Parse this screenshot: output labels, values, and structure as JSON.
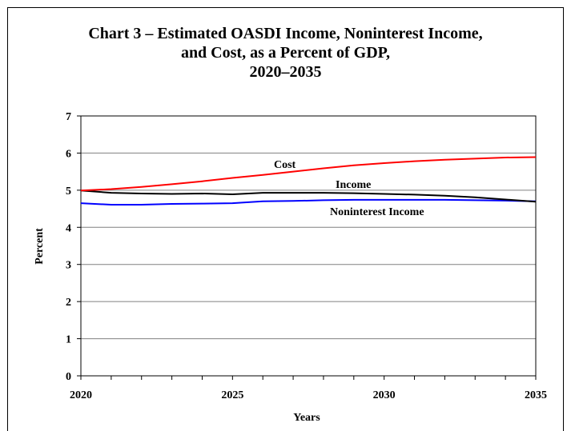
{
  "chart_data": {
    "type": "line",
    "title": [
      "Chart 3 – Estimated OASDI Income, Noninterest Income,",
      "and Cost, as a Percent of GDP,",
      "2020–2035"
    ],
    "xlabel": "Years",
    "ylabel": "Percent",
    "xlim": [
      2020,
      2035
    ],
    "ylim": [
      0,
      7
    ],
    "x_ticks": [
      "2020",
      "2025",
      "2030",
      "2035"
    ],
    "y_ticks": [
      "0",
      "1",
      "2",
      "3",
      "4",
      "5",
      "6",
      "7"
    ],
    "grid": "horizontal",
    "x": [
      2020,
      2021,
      2022,
      2023,
      2024,
      2025,
      2026,
      2027,
      2028,
      2029,
      2030,
      2031,
      2032,
      2033,
      2034,
      2035
    ],
    "series": [
      {
        "name": "Cost",
        "color": "#ff0000",
        "values": [
          4.99,
          5.03,
          5.09,
          5.16,
          5.24,
          5.33,
          5.41,
          5.5,
          5.59,
          5.67,
          5.73,
          5.78,
          5.82,
          5.85,
          5.88,
          5.89
        ]
      },
      {
        "name": "Income",
        "color": "#000000",
        "values": [
          4.99,
          4.93,
          4.91,
          4.9,
          4.91,
          4.89,
          4.93,
          4.93,
          4.93,
          4.92,
          4.9,
          4.88,
          4.85,
          4.81,
          4.75,
          4.69
        ]
      },
      {
        "name": "Noninterest Income",
        "color": "#0000ff",
        "values": [
          4.65,
          4.61,
          4.61,
          4.63,
          4.64,
          4.65,
          4.7,
          4.71,
          4.73,
          4.74,
          4.74,
          4.74,
          4.74,
          4.73,
          4.72,
          4.7
        ]
      }
    ]
  }
}
